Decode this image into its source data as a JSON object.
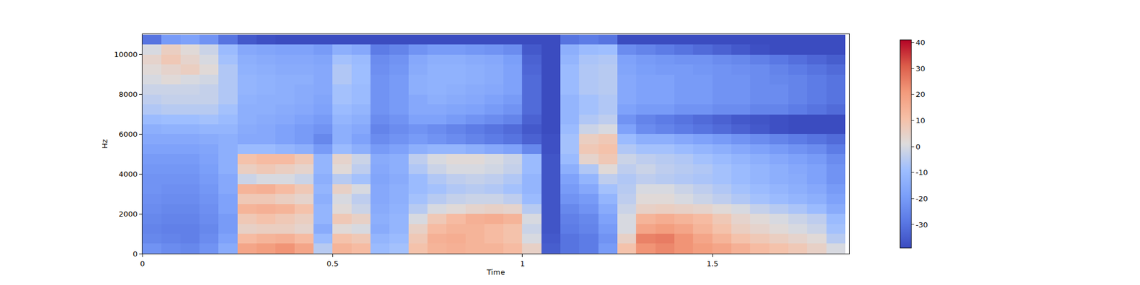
{
  "chart_data": {
    "type": "heatmap",
    "xlabel": "Time",
    "ylabel": "Hz",
    "x": [
      0.025,
      0.075,
      0.125,
      0.175,
      0.225,
      0.275,
      0.325,
      0.375,
      0.425,
      0.475,
      0.525,
      0.575,
      0.625,
      0.675,
      0.725,
      0.775,
      0.825,
      0.875,
      0.925,
      0.975,
      1.025,
      1.075,
      1.125,
      1.175,
      1.225,
      1.275,
      1.325,
      1.375,
      1.425,
      1.475,
      1.525,
      1.575,
      1.625,
      1.675,
      1.725,
      1.775,
      1.825
    ],
    "y": [
      250,
      750,
      1250,
      1750,
      2250,
      2750,
      3250,
      3750,
      4250,
      4750,
      5250,
      5750,
      6250,
      6750,
      7250,
      7750,
      8250,
      8750,
      9250,
      9750,
      10250,
      10750
    ],
    "cells": [
      [
        -22,
        -24,
        -25,
        -22,
        -15,
        18,
        20,
        22,
        18,
        -5,
        14,
        12,
        -10,
        -8,
        10,
        14,
        15,
        14,
        14,
        12,
        5,
        -35,
        -30,
        -28,
        -20,
        10,
        22,
        24,
        22,
        20,
        18,
        15,
        12,
        10,
        8,
        5,
        0
      ],
      [
        -25,
        -26,
        -27,
        -24,
        -18,
        12,
        14,
        15,
        12,
        -10,
        10,
        8,
        -12,
        -10,
        8,
        15,
        16,
        14,
        12,
        10,
        0,
        -36,
        -30,
        -28,
        -22,
        5,
        25,
        26,
        22,
        18,
        14,
        10,
        8,
        6,
        4,
        2,
        -5
      ],
      [
        -26,
        -27,
        -27,
        -25,
        -20,
        5,
        6,
        6,
        4,
        -15,
        2,
        0,
        -15,
        -12,
        5,
        12,
        14,
        14,
        12,
        10,
        -2,
        -37,
        -28,
        -26,
        -20,
        0,
        18,
        20,
        18,
        14,
        10,
        6,
        4,
        2,
        0,
        -2,
        -8
      ],
      [
        -25,
        -26,
        -26,
        -24,
        -20,
        8,
        10,
        8,
        6,
        -12,
        8,
        5,
        -14,
        -12,
        0,
        8,
        12,
        15,
        16,
        14,
        0,
        -37,
        -27,
        -25,
        -18,
        0,
        14,
        16,
        14,
        12,
        8,
        4,
        2,
        0,
        -2,
        -4,
        -10
      ],
      [
        -24,
        -25,
        -25,
        -23,
        -18,
        14,
        15,
        14,
        10,
        -12,
        2,
        -2,
        -15,
        -13,
        -5,
        0,
        2,
        4,
        5,
        4,
        -5,
        -37,
        -25,
        -22,
        -15,
        -2,
        5,
        6,
        5,
        4,
        2,
        0,
        -3,
        -5,
        -7,
        -10,
        -15
      ],
      [
        -23,
        -24,
        -24,
        -22,
        -18,
        8,
        8,
        6,
        4,
        -14,
        0,
        -4,
        -16,
        -14,
        -8,
        -5,
        -3,
        -2,
        -2,
        -4,
        -10,
        -37,
        -22,
        -20,
        -12,
        -4,
        2,
        2,
        0,
        -2,
        -4,
        -6,
        -8,
        -10,
        -12,
        -14,
        -18
      ],
      [
        -22,
        -23,
        -23,
        -21,
        -16,
        14,
        15,
        12,
        8,
        -12,
        5,
        0,
        -16,
        -14,
        -10,
        -8,
        -6,
        -5,
        -6,
        -8,
        -12,
        -37,
        -20,
        -16,
        -8,
        -5,
        0,
        0,
        -2,
        -4,
        -6,
        -8,
        -10,
        -12,
        -14,
        -16,
        -20
      ],
      [
        -22,
        -22,
        -22,
        -20,
        -16,
        -2,
        0,
        0,
        -2,
        -14,
        -5,
        -8,
        -17,
        -15,
        -10,
        -6,
        -4,
        -3,
        -4,
        -6,
        -12,
        -37,
        -18,
        -12,
        -4,
        -6,
        -4,
        -5,
        -6,
        -7,
        -8,
        -10,
        -12,
        -14,
        -15,
        -18,
        -22
      ],
      [
        -21,
        -21,
        -21,
        -19,
        -14,
        6,
        8,
        6,
        4,
        -12,
        2,
        -4,
        -16,
        -14,
        -6,
        -2,
        0,
        0,
        -1,
        -3,
        -10,
        -37,
        -14,
        -6,
        2,
        -4,
        -2,
        -4,
        -5,
        -6,
        -8,
        -10,
        -12,
        -14,
        -16,
        -18,
        -22
      ],
      [
        -20,
        -20,
        -20,
        -18,
        -14,
        10,
        12,
        12,
        8,
        -12,
        4,
        -2,
        -15,
        -14,
        -4,
        0,
        2,
        2,
        0,
        -2,
        -10,
        -37,
        -10,
        4,
        8,
        -2,
        -4,
        -5,
        -6,
        -8,
        -10,
        -12,
        -14,
        -16,
        -18,
        -20,
        -24
      ],
      [
        -18,
        -18,
        -18,
        -17,
        -14,
        -10,
        -10,
        -12,
        -14,
        -20,
        -10,
        -14,
        -20,
        -18,
        -14,
        -12,
        -12,
        -14,
        -16,
        -18,
        -25,
        -38,
        -8,
        8,
        10,
        -6,
        -8,
        -8,
        -10,
        -12,
        -14,
        -16,
        -18,
        -20,
        -22,
        -24,
        -28
      ],
      [
        -16,
        -16,
        -16,
        -15,
        -14,
        -16,
        -16,
        -18,
        -20,
        -25,
        -14,
        -18,
        -24,
        -22,
        -20,
        -22,
        -24,
        -26,
        -28,
        -30,
        -34,
        -38,
        -8,
        6,
        8,
        -10,
        -14,
        -14,
        -16,
        -18,
        -20,
        -22,
        -24,
        -26,
        -28,
        -30,
        -32
      ],
      [
        -14,
        -13,
        -13,
        -12,
        -12,
        -15,
        -16,
        -18,
        -20,
        -22,
        -14,
        -16,
        -26,
        -24,
        -22,
        -24,
        -26,
        -28,
        -30,
        -32,
        -36,
        -39,
        -10,
        -2,
        0,
        -18,
        -24,
        -26,
        -28,
        -30,
        -32,
        -34,
        -36,
        -38,
        -39,
        -39,
        -39
      ],
      [
        -10,
        -9,
        -9,
        -8,
        -10,
        -14,
        -15,
        -16,
        -18,
        -20,
        -12,
        -14,
        -24,
        -22,
        -18,
        -18,
        -20,
        -22,
        -24,
        -26,
        -34,
        -39,
        -12,
        -6,
        -4,
        -22,
        -26,
        -28,
        -30,
        -32,
        -34,
        -36,
        -37,
        -38,
        -39,
        -39,
        -39
      ],
      [
        -6,
        -5,
        -5,
        -5,
        -8,
        -14,
        -14,
        -15,
        -16,
        -18,
        -10,
        -12,
        -22,
        -20,
        -16,
        -16,
        -17,
        -18,
        -20,
        -22,
        -32,
        -39,
        -12,
        -8,
        -6,
        -18,
        -20,
        -20,
        -22,
        -22,
        -24,
        -24,
        -26,
        -26,
        -28,
        -30,
        -32
      ],
      [
        -4,
        -3,
        -3,
        -3,
        -6,
        -13,
        -14,
        -14,
        -15,
        -17,
        -8,
        -10,
        -22,
        -20,
        -16,
        -14,
        -15,
        -16,
        -18,
        -20,
        -32,
        -39,
        -12,
        -8,
        -6,
        -16,
        -18,
        -18,
        -20,
        -20,
        -22,
        -22,
        -24,
        -24,
        -26,
        -28,
        -30
      ],
      [
        -2,
        -2,
        -2,
        -3,
        -6,
        -12,
        -13,
        -14,
        -15,
        -16,
        -8,
        -10,
        -22,
        -20,
        -14,
        -13,
        -14,
        -15,
        -16,
        -18,
        -32,
        -39,
        -10,
        -6,
        -5,
        -16,
        -18,
        -18,
        -20,
        -20,
        -22,
        -22,
        -24,
        -24,
        -26,
        -28,
        -30
      ],
      [
        0,
        2,
        0,
        -1,
        -6,
        -12,
        -13,
        -14,
        -14,
        -16,
        -6,
        -9,
        -22,
        -20,
        -14,
        -13,
        -13,
        -14,
        -15,
        -18,
        -32,
        -39,
        -10,
        -6,
        -5,
        -16,
        -18,
        -18,
        -20,
        -20,
        -22,
        -22,
        -24,
        -25,
        -26,
        -28,
        -30
      ],
      [
        2,
        4,
        6,
        2,
        -6,
        -13,
        -14,
        -15,
        -15,
        -16,
        -6,
        -9,
        -23,
        -21,
        -15,
        -13,
        -13,
        -14,
        -15,
        -18,
        -33,
        -39,
        -10,
        -6,
        -5,
        -17,
        -19,
        -20,
        -20,
        -21,
        -22,
        -23,
        -24,
        -26,
        -28,
        -30,
        -32
      ],
      [
        4,
        8,
        4,
        0,
        -8,
        -14,
        -15,
        -16,
        -16,
        -17,
        -8,
        -10,
        -24,
        -22,
        -16,
        -14,
        -14,
        -15,
        -16,
        -19,
        -34,
        -39,
        -12,
        -7,
        -6,
        -18,
        -20,
        -21,
        -22,
        -22,
        -24,
        -25,
        -27,
        -29,
        -31,
        -33,
        -35
      ],
      [
        0,
        6,
        2,
        -2,
        -10,
        -16,
        -17,
        -18,
        -18,
        -20,
        -14,
        -16,
        -28,
        -26,
        -22,
        -20,
        -20,
        -21,
        -22,
        -24,
        -36,
        -39,
        -14,
        -10,
        -9,
        -24,
        -26,
        -28,
        -30,
        -32,
        -34,
        -36,
        -38,
        -39,
        -39,
        -39,
        -39
      ],
      [
        -30,
        -20,
        -18,
        -22,
        -30,
        -36,
        -38,
        -39,
        -39,
        -39,
        -39,
        -39,
        -39,
        -39,
        -39,
        -39,
        -39,
        -39,
        -39,
        -39,
        -39,
        -39,
        -30,
        -28,
        -30,
        -39,
        -39,
        -39,
        -39,
        -39,
        -39,
        -39,
        -39,
        -39,
        -39,
        -39,
        -39
      ]
    ],
    "xlim": [
      0,
      1.86
    ],
    "ylim": [
      0,
      11025
    ],
    "xticks": [
      0,
      0.5,
      1,
      1.5
    ],
    "yticks": [
      0,
      2000,
      4000,
      6000,
      8000,
      10000
    ],
    "colorbar_range": [
      -39,
      41
    ],
    "colorbar_ticks": [
      -30,
      -20,
      -10,
      0,
      10,
      20,
      30,
      40
    ]
  }
}
